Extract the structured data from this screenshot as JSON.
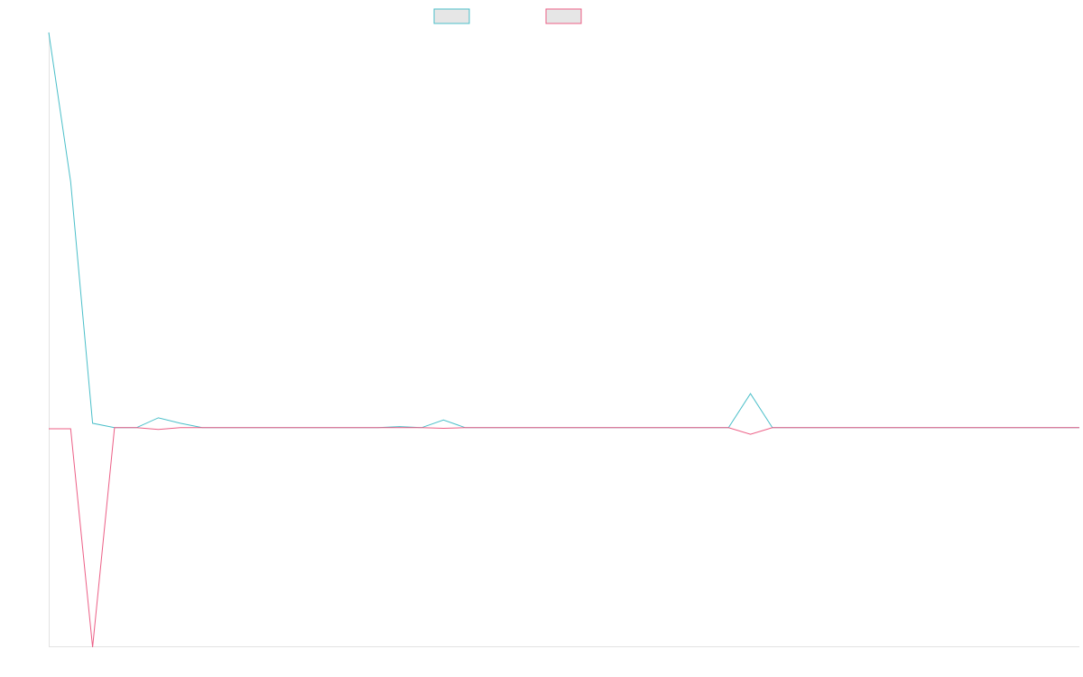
{
  "chart_data": {
    "type": "line",
    "title": "",
    "xlabel": "",
    "ylabel": "",
    "legend": {
      "placement": "top-center",
      "entries": [
        {
          "label": "",
          "color": "#4bbfc9"
        },
        {
          "label": "",
          "color": "#ec5f86"
        }
      ]
    },
    "grid": false,
    "x": [
      0,
      1,
      2,
      3,
      4,
      5,
      6,
      7,
      8,
      9,
      10,
      11,
      12,
      13,
      14,
      15,
      16,
      17,
      18,
      19,
      20,
      21,
      22,
      23,
      24,
      25,
      26,
      27,
      28,
      29,
      30,
      31,
      32,
      33,
      34,
      35,
      36,
      37,
      38,
      39,
      40,
      41,
      42,
      43,
      44,
      45,
      46,
      47
    ],
    "xlim": [
      0,
      47
    ],
    "ylim": [
      -1,
      1.8
    ],
    "series": [
      {
        "color": "#4bbfc9",
        "values": [
          1.8,
          1.12,
          0.02,
          0.0,
          0.0,
          0.045,
          0.02,
          0.0,
          0.0,
          0.0,
          0.0,
          0.0,
          0.0,
          0.0,
          0.0,
          0.0,
          0.005,
          0.0,
          0.035,
          0.0,
          0.0,
          0.0,
          0.0,
          0.0,
          0.0,
          0.0,
          0.0,
          0.0,
          0.0,
          0.0,
          0.0,
          0.0,
          0.155,
          0.0,
          0.0,
          0.0,
          0.0,
          0.0,
          0.0,
          0.0,
          0.0,
          0.0,
          0.0,
          0.0,
          0.0,
          0.0,
          0.0,
          0.0
        ]
      },
      {
        "color": "#ec5f86",
        "values": [
          -0.005,
          -0.005,
          -1.0,
          0.0,
          0.0,
          -0.008,
          0.0,
          0.0,
          0.0,
          0.0,
          0.0,
          0.0,
          0.0,
          0.0,
          0.0,
          0.0,
          0.0,
          0.0,
          -0.003,
          0.0,
          0.0,
          0.0,
          0.0,
          0.0,
          0.0,
          0.0,
          0.0,
          0.0,
          0.0,
          0.0,
          0.0,
          0.0,
          -0.03,
          0.0,
          0.0,
          0.0,
          0.0,
          0.0,
          0.0,
          0.0,
          0.0,
          0.0,
          0.0,
          0.0,
          0.0,
          0.0,
          0.0,
          0.0
        ]
      }
    ]
  }
}
